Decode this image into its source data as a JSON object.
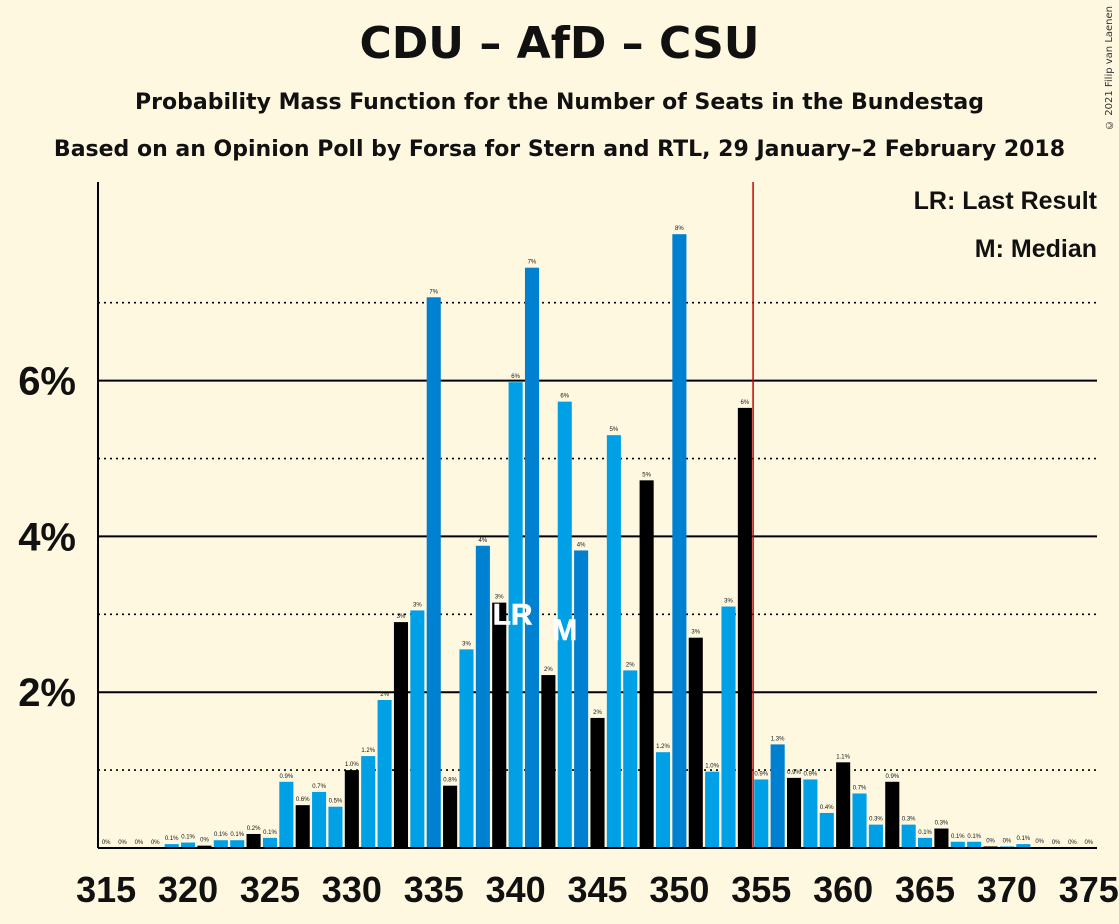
{
  "title": "CDU – AfD – CSU",
  "subtitle": "Probability Mass Function for the Number of Seats in the Bundestag",
  "subtitle2": "Based on an Opinion Poll by Forsa for Stern and RTL, 29 January–2 February 2018",
  "copyright": "© 2021 Filip van Laenen",
  "legend": {
    "lr": "LR: Last Result",
    "m": "M: Median"
  },
  "markers": {
    "lr_label": "LR",
    "m_label": "M"
  },
  "colors": {
    "background": "#fff8e1",
    "bar_dark_blue": "#0080d0",
    "bar_light_blue": "#00a0e6",
    "bar_black": "#000000",
    "majority_line": "#cc0000"
  },
  "chart_data": {
    "type": "bar",
    "x": [
      315,
      316,
      317,
      318,
      319,
      320,
      321,
      322,
      323,
      324,
      325,
      326,
      327,
      328,
      329,
      330,
      331,
      332,
      333,
      334,
      335,
      336,
      337,
      338,
      339,
      340,
      341,
      342,
      343,
      344,
      345,
      346,
      347,
      348,
      349,
      350,
      351,
      352,
      353,
      354,
      355,
      356,
      357,
      358,
      359,
      360,
      361,
      362,
      363,
      364,
      365,
      366,
      367,
      368,
      369,
      370,
      371,
      372,
      373,
      374,
      375
    ],
    "values": [
      0.0,
      0.0,
      0.0,
      0.0,
      0.05,
      0.07,
      0.03,
      0.1,
      0.1,
      0.18,
      0.13,
      0.85,
      0.55,
      0.72,
      0.53,
      1.0,
      1.18,
      1.9,
      2.9,
      3.05,
      7.07,
      0.8,
      2.55,
      3.88,
      3.15,
      5.98,
      7.45,
      2.22,
      5.73,
      3.82,
      1.67,
      5.3,
      2.28,
      4.72,
      1.23,
      7.88,
      2.7,
      0.98,
      3.1,
      5.65,
      0.88,
      1.33,
      0.9,
      0.88,
      0.45,
      1.1,
      0.7,
      0.3,
      0.85,
      0.3,
      0.13,
      0.25,
      0.08,
      0.08,
      0.02,
      0.02,
      0.05,
      0.01,
      0.0,
      0.0,
      0.0
    ],
    "data_labels": [
      "0%",
      "0%",
      "0%",
      "0%",
      "0.1%",
      "0.1%",
      "0%",
      "0.1%",
      "0.1%",
      "0.2%",
      "0.1%",
      "0.9%",
      "0.6%",
      "0.7%",
      "0.5%",
      "1.0%",
      "1.2%",
      "2%",
      "3%",
      "3%",
      "7%",
      "0.8%",
      "3%",
      "4%",
      "3%",
      "6%",
      "7%",
      "2%",
      "6%",
      "4%",
      "2%",
      "5%",
      "2%",
      "5%",
      "1.2%",
      "8%",
      "3%",
      "1.0%",
      "3%",
      "6%",
      "0.9%",
      "1.3%",
      "0.9%",
      "0.9%",
      "0.4%",
      "1.1%",
      "0.7%",
      "0.3%",
      "0.9%",
      "0.3%",
      "0.1%",
      "0.3%",
      "0.1%",
      "0.1%",
      "0%",
      "0%",
      "0.1%",
      "0%",
      "0%",
      "0%",
      "0%"
    ],
    "bar_colors": [
      "light",
      "dark",
      "light",
      "dark",
      "light",
      "light",
      "black",
      "light",
      "light",
      "black",
      "light",
      "light",
      "black",
      "light",
      "light",
      "black",
      "light",
      "light",
      "black",
      "light",
      "dark",
      "black",
      "light",
      "dark",
      "black",
      "light",
      "dark",
      "black",
      "light",
      "dark",
      "black",
      "light",
      "light",
      "black",
      "light",
      "dark",
      "black",
      "light",
      "light",
      "black",
      "light",
      "dark",
      "black",
      "light",
      "light",
      "black",
      "light",
      "light",
      "black",
      "light",
      "light",
      "black",
      "light",
      "light",
      "black",
      "light",
      "light",
      "black",
      "light",
      "light",
      "black"
    ],
    "xticks": [
      315,
      320,
      325,
      330,
      335,
      340,
      345,
      350,
      355,
      360,
      365,
      370,
      375
    ],
    "xtick_labels": [
      "315",
      "320",
      "325",
      "330",
      "335",
      "340",
      "345",
      "350",
      "355",
      "360",
      "365",
      "370",
      "375"
    ],
    "yticks_solid": [
      2,
      4,
      6
    ],
    "ytick_labels": [
      "2%",
      "4%",
      "6%"
    ],
    "yticks_dotted": [
      1,
      3,
      5,
      7
    ],
    "ylim": [
      0,
      8.55
    ],
    "xlim": [
      314.5,
      375.5
    ],
    "majority_line_x": 354.5,
    "last_result_x": 340,
    "median_x": 343,
    "legend_position": "top-right",
    "xlabel": "",
    "ylabel": ""
  }
}
